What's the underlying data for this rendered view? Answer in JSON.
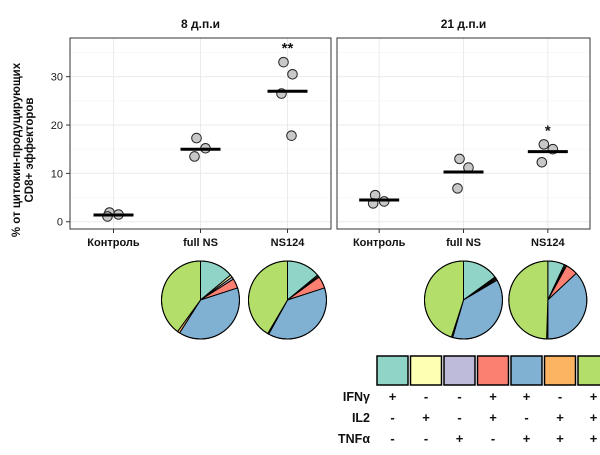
{
  "chart_data": {
    "type": "scatter",
    "ylabel": [
      "% от цитокин-продуцирующих",
      "CD8+ эффекторов"
    ],
    "ylim": [
      -1.5,
      38
    ],
    "yticks": [
      0,
      10,
      20,
      30
    ],
    "categories": [
      "Контроль",
      "full NS",
      "NS124"
    ],
    "panels": [
      {
        "title": "8 д.п.и",
        "groups": [
          {
            "category": "Контроль",
            "median": 1.4,
            "points": [
              1.9,
              1.5,
              1.1
            ]
          },
          {
            "category": "full NS",
            "median": 15.0,
            "points": [
              17.3,
              15.2,
              13.5
            ]
          },
          {
            "category": "NS124",
            "median": 27.0,
            "points": [
              33.0,
              30.5,
              26.5,
              17.8
            ]
          }
        ],
        "significance": {
          "category": "NS124",
          "label": "**"
        }
      },
      {
        "title": "21 д.п.и",
        "groups": [
          {
            "category": "Контроль",
            "median": 4.5,
            "points": [
              5.5,
              4.2,
              3.8
            ]
          },
          {
            "category": "full NS",
            "median": 10.3,
            "points": [
              13.0,
              11.2,
              6.9
            ]
          },
          {
            "category": "NS124",
            "median": 14.5,
            "points": [
              16.0,
              15.0,
              12.3
            ]
          }
        ],
        "significance": {
          "category": "NS124",
          "label": "*"
        }
      }
    ],
    "pie_categories": [
      {
        "color": "#8fd4c6",
        "IFNγ": "+",
        "IL2": "-",
        "TNFα": "-"
      },
      {
        "color": "#ffffb3",
        "IFNγ": "-",
        "IL2": "+",
        "TNFα": "-"
      },
      {
        "color": "#bebada",
        "IFNγ": "-",
        "IL2": "-",
        "TNFα": "+"
      },
      {
        "color": "#fb8072",
        "IFNγ": "+",
        "IL2": "+",
        "TNFα": "-"
      },
      {
        "color": "#80b1d3",
        "IFNγ": "+",
        "IL2": "-",
        "TNFα": "+"
      },
      {
        "color": "#fdb462",
        "IFNγ": "-",
        "IL2": "+",
        "TNFα": "+"
      },
      {
        "color": "#b3de69",
        "IFNγ": "+",
        "IL2": "+",
        "TNFα": "+"
      }
    ],
    "pies": [
      {
        "panel": "8 д.п.и",
        "group": "full NS",
        "fractions": [
          0.14,
          0.01,
          0.01,
          0.04,
          0.39,
          0.01,
          0.4
        ]
      },
      {
        "panel": "8 д.п.и",
        "group": "NS124",
        "fractions": [
          0.14,
          0.005,
          0.005,
          0.05,
          0.38,
          0.005,
          0.415
        ]
      },
      {
        "panel": "21 д.п.и",
        "group": "full NS",
        "fractions": [
          0.15,
          0.005,
          0.005,
          0.005,
          0.38,
          0.005,
          0.45
        ]
      },
      {
        "panel": "21 д.п.и",
        "group": "NS124",
        "fractions": [
          0.07,
          0.005,
          0.005,
          0.05,
          0.37,
          0.005,
          0.495
        ]
      }
    ],
    "legend": {
      "rows": [
        "IFNγ",
        "IL2",
        "TNFα"
      ]
    },
    "grid": true
  }
}
